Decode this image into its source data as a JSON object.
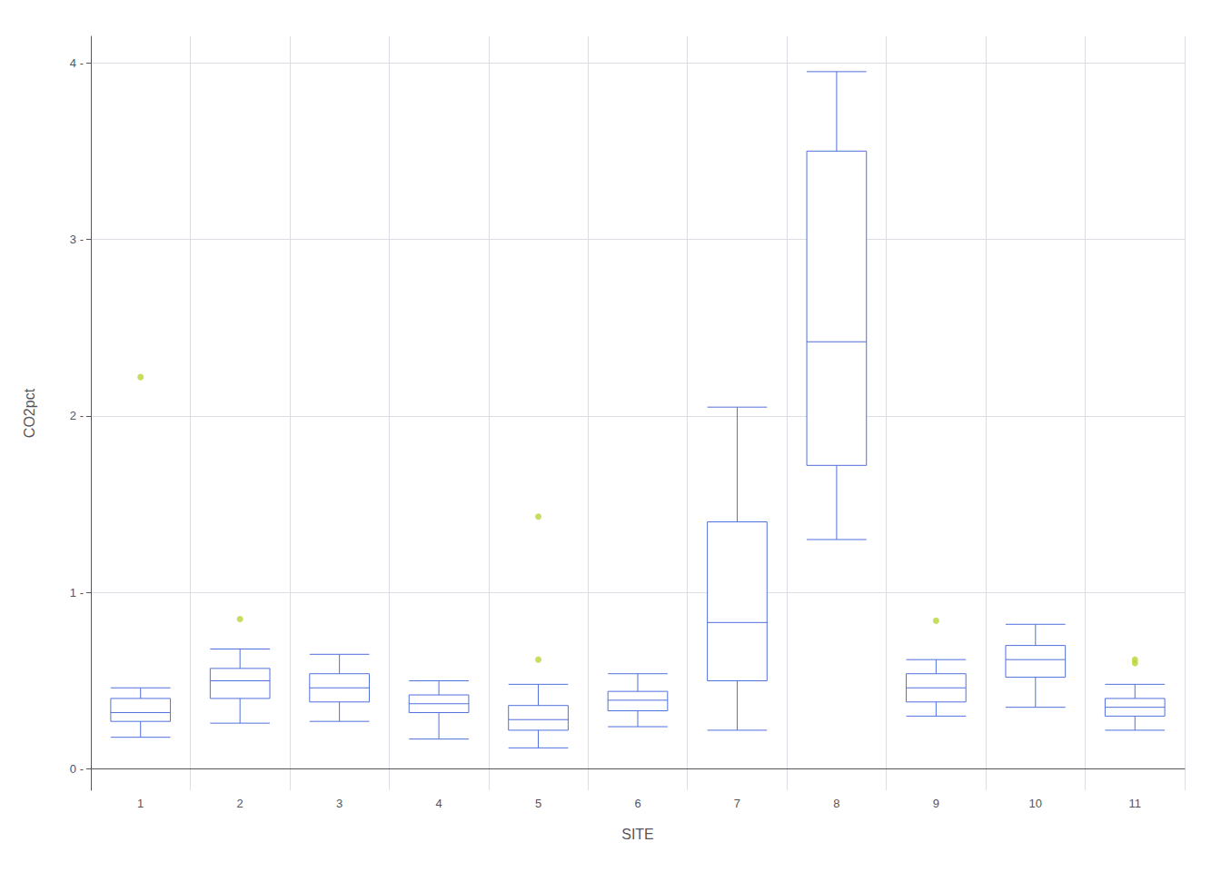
{
  "chart_data": {
    "type": "boxplot",
    "xlabel": "SITE",
    "ylabel": "CO2pct",
    "categories": [
      "1",
      "2",
      "3",
      "4",
      "5",
      "6",
      "7",
      "8",
      "9",
      "10",
      "11"
    ],
    "boxes": [
      {
        "whisker_low": 0.18,
        "q1": 0.27,
        "median": 0.32,
        "q3": 0.4,
        "whisker_high": 0.46,
        "outliers": [
          2.22
        ]
      },
      {
        "whisker_low": 0.26,
        "q1": 0.4,
        "median": 0.5,
        "q3": 0.57,
        "whisker_high": 0.68,
        "outliers": [
          0.85
        ]
      },
      {
        "whisker_low": 0.27,
        "q1": 0.38,
        "median": 0.46,
        "q3": 0.54,
        "whisker_high": 0.65,
        "outliers": []
      },
      {
        "whisker_low": 0.17,
        "q1": 0.32,
        "median": 0.37,
        "q3": 0.42,
        "whisker_high": 0.5,
        "outliers": []
      },
      {
        "whisker_low": 0.12,
        "q1": 0.22,
        "median": 0.28,
        "q3": 0.36,
        "whisker_high": 0.48,
        "outliers": [
          0.62,
          1.43
        ]
      },
      {
        "whisker_low": 0.24,
        "q1": 0.33,
        "median": 0.39,
        "q3": 0.44,
        "whisker_high": 0.54,
        "outliers": []
      },
      {
        "whisker_low": 0.22,
        "q1": 0.5,
        "median": 0.83,
        "q3": 1.4,
        "whisker_high": 2.05,
        "outliers": []
      },
      {
        "whisker_low": 1.3,
        "q1": 1.72,
        "median": 2.42,
        "q3": 3.5,
        "whisker_high": 3.95,
        "outliers": []
      },
      {
        "whisker_low": 0.3,
        "q1": 0.38,
        "median": 0.46,
        "q3": 0.54,
        "whisker_high": 0.62,
        "outliers": [
          0.84
        ]
      },
      {
        "whisker_low": 0.35,
        "q1": 0.52,
        "median": 0.62,
        "q3": 0.7,
        "whisker_high": 0.82,
        "outliers": []
      },
      {
        "whisker_low": 0.22,
        "q1": 0.3,
        "median": 0.35,
        "q3": 0.4,
        "whisker_high": 0.48,
        "outliers": [
          0.6,
          0.62
        ]
      }
    ],
    "ylim": [
      -0.12,
      4.15
    ],
    "yticks": [
      {
        "value": 0,
        "label": "0 -"
      },
      {
        "value": 1,
        "label": "1 -"
      },
      {
        "value": 2,
        "label": "2 -"
      },
      {
        "value": 3,
        "label": "3 -"
      },
      {
        "value": 4,
        "label": "4 -"
      }
    ],
    "grid": true
  }
}
